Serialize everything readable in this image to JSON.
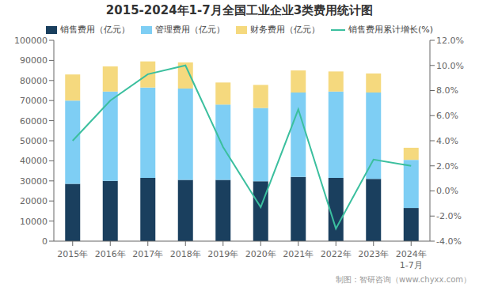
{
  "chart_data": {
    "type": "bar",
    "title": "2015-2024年1-7月全国工业企业3类费用统计图",
    "categories": [
      "2015年",
      "2016年",
      "2017年",
      "2018年",
      "2019年",
      "2020年",
      "2021年",
      "2022年",
      "2023年",
      "2024年"
    ],
    "stacked": true,
    "grid": false,
    "legend": "top",
    "series": [
      {
        "name": "销售费用（亿元）",
        "type": "bar",
        "color": "#1a3f5e",
        "values": [
          28500,
          30000,
          31500,
          30500,
          30500,
          29800,
          32000,
          31500,
          31000,
          16500
        ]
      },
      {
        "name": "管理费用（亿元）",
        "type": "bar",
        "color": "#7ecef4",
        "values": [
          41500,
          44500,
          45000,
          45500,
          37500,
          36500,
          42000,
          43000,
          43000,
          24000
        ]
      },
      {
        "name": "财务费用（亿元）",
        "type": "bar",
        "color": "#f5d97e",
        "values": [
          13000,
          12500,
          13000,
          13000,
          11000,
          11500,
          11000,
          10000,
          9500,
          6000
        ]
      },
      {
        "name": "销售费用累计增长(%)",
        "type": "line",
        "axis": "y2",
        "color": "#3bbf9e",
        "values": [
          4.0,
          7.2,
          9.3,
          10.0,
          3.5,
          -1.3,
          6.5,
          -3.0,
          2.5,
          2.0
        ]
      }
    ],
    "ylim": [
      0,
      100000
    ],
    "yticks": [
      0,
      10000,
      20000,
      30000,
      40000,
      50000,
      60000,
      70000,
      80000,
      90000,
      100000
    ],
    "y2lim": [
      -4.0,
      12.0
    ],
    "y2ticks": [
      {
        "value": -4.0,
        "label": "-4.0%"
      },
      {
        "value": -2.0,
        "label": "-2.0%"
      },
      {
        "value": 0.0,
        "label": "0.0%"
      },
      {
        "value": 2.0,
        "label": "2.0%"
      },
      {
        "value": 4.0,
        "label": "4.0%"
      },
      {
        "value": 6.0,
        "label": "6.0%"
      },
      {
        "value": 8.0,
        "label": "8.0%"
      },
      {
        "value": 10.0,
        "label": "10.0%"
      },
      {
        "value": 12.0,
        "label": "12.0%"
      }
    ],
    "annotations": [
      {
        "text": "1-7月",
        "x": "2024年"
      },
      {
        "text": "制图：智研咨询（www.chyxx.com）"
      }
    ]
  }
}
